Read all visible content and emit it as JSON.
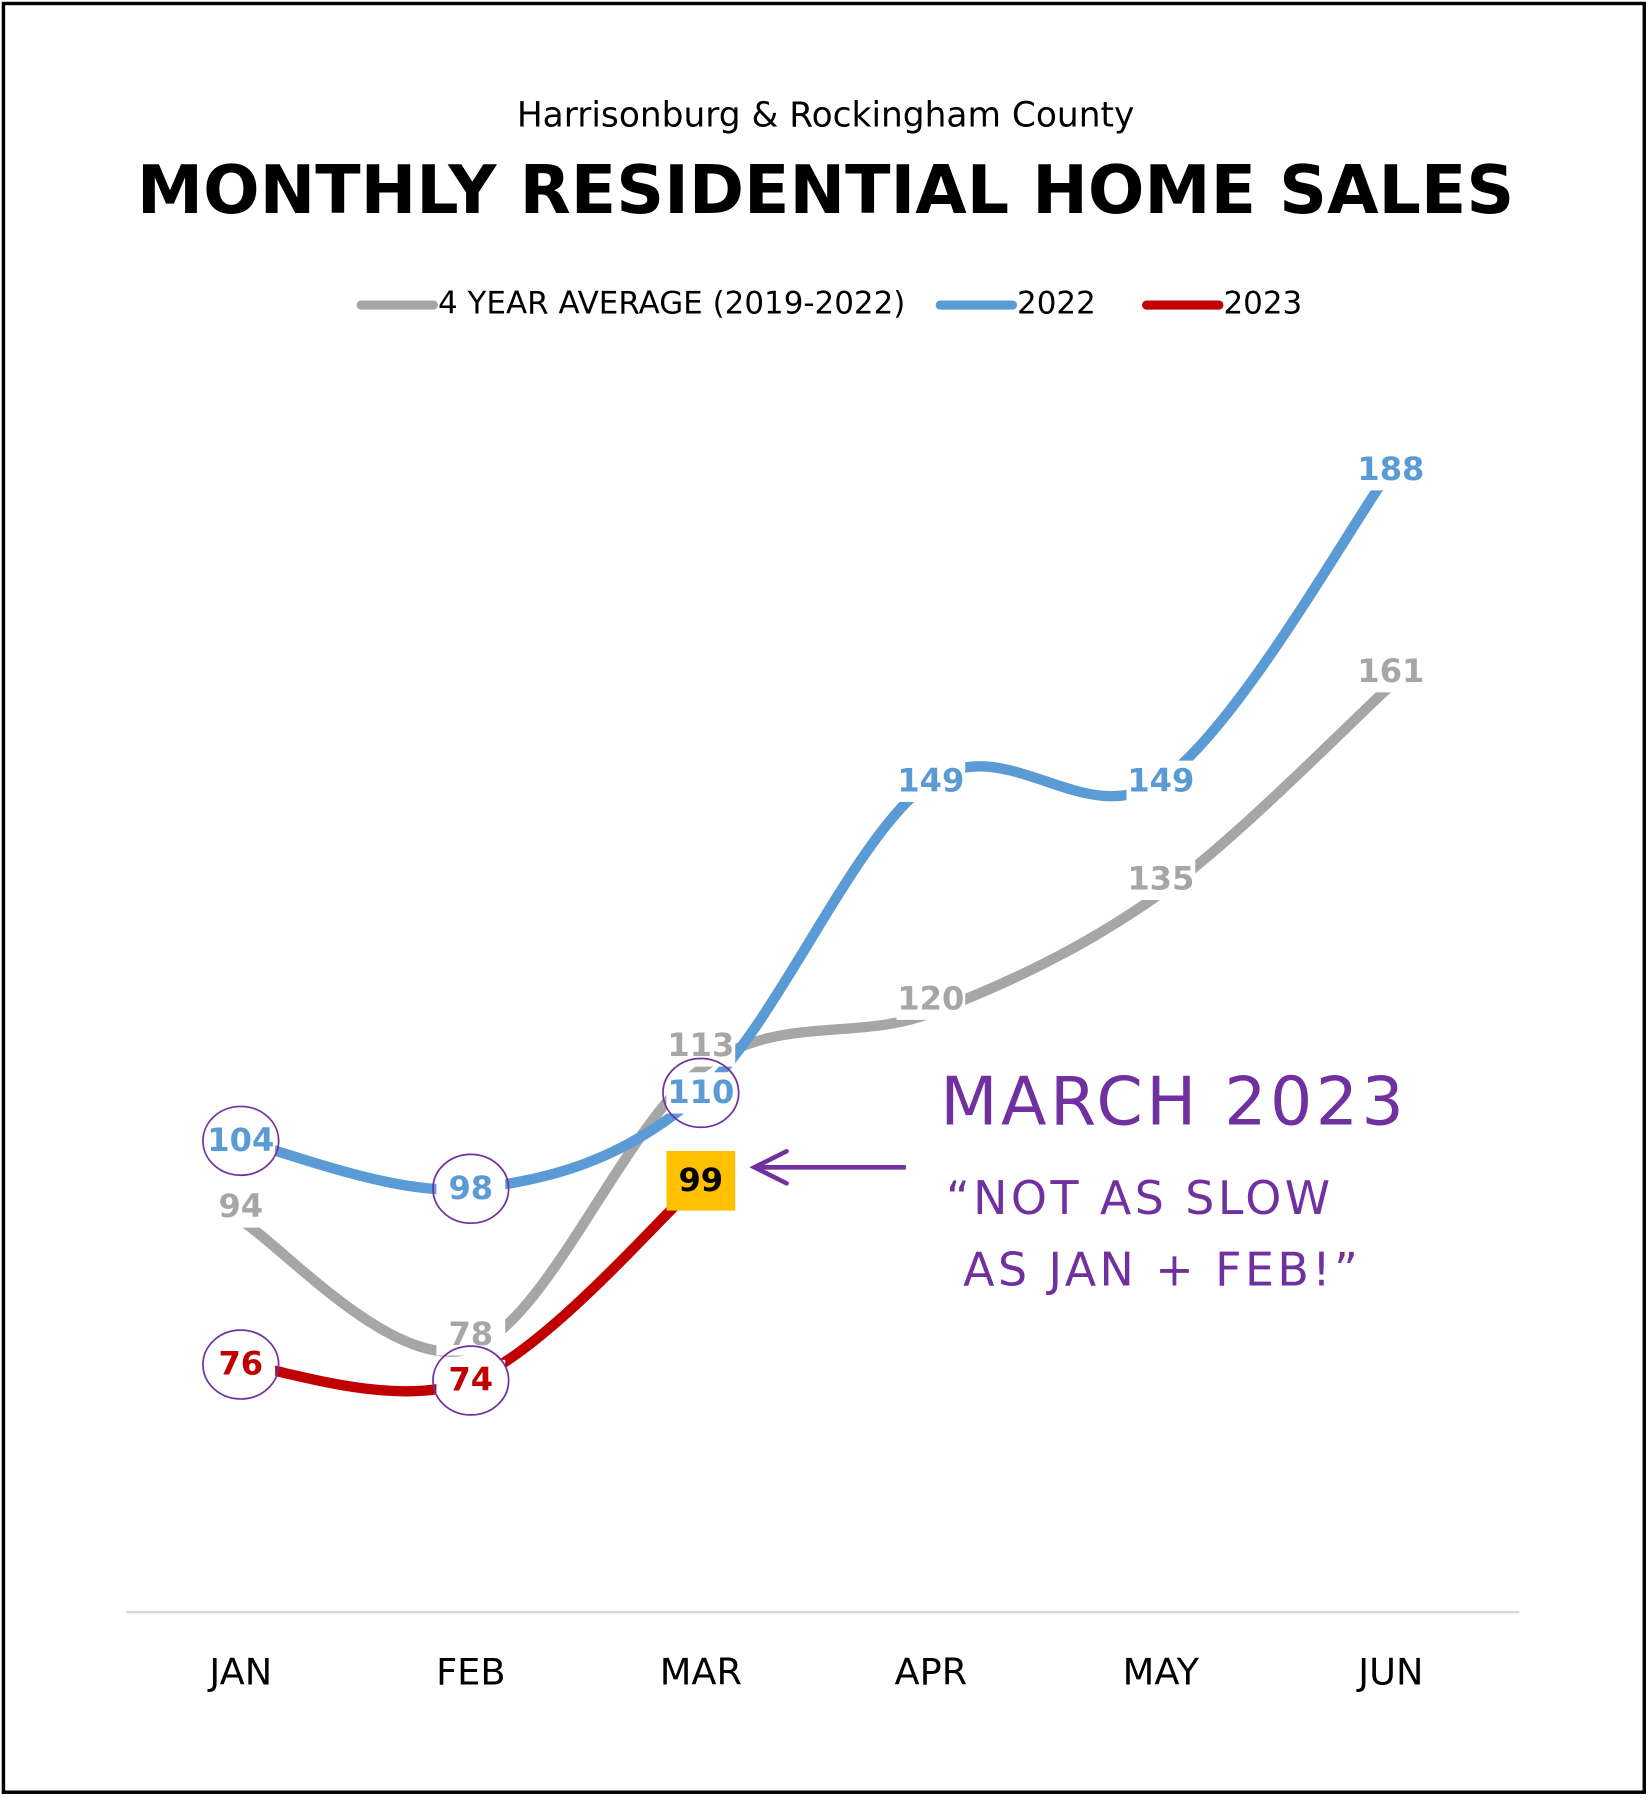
{
  "chart_data": {
    "type": "line",
    "subtitle": "Harrisonburg & Rockingham County",
    "title": "MONTHLY RESIDENTIAL HOME SALES",
    "categories": [
      "JAN",
      "FEB",
      "MAR",
      "APR",
      "MAY",
      "JUN"
    ],
    "series": [
      {
        "name": "4 YEAR AVERAGE (2019-2022)",
        "color": "#a6a6a6",
        "values": [
          94,
          78,
          113,
          120,
          135,
          161
        ]
      },
      {
        "name": "2022",
        "color": "#5b9bd5",
        "values": [
          104,
          98,
          110,
          149,
          149,
          188
        ]
      },
      {
        "name": "2023",
        "color": "#c00000",
        "values": [
          76,
          74,
          99,
          null,
          null,
          null
        ]
      }
    ],
    "ylim": [
      45,
      200
    ],
    "legend": "top",
    "annotation": {
      "title": "MARCH 2023",
      "lines": [
        "“NOT AS SLOW",
        "AS JAN + FEB!”"
      ]
    }
  }
}
